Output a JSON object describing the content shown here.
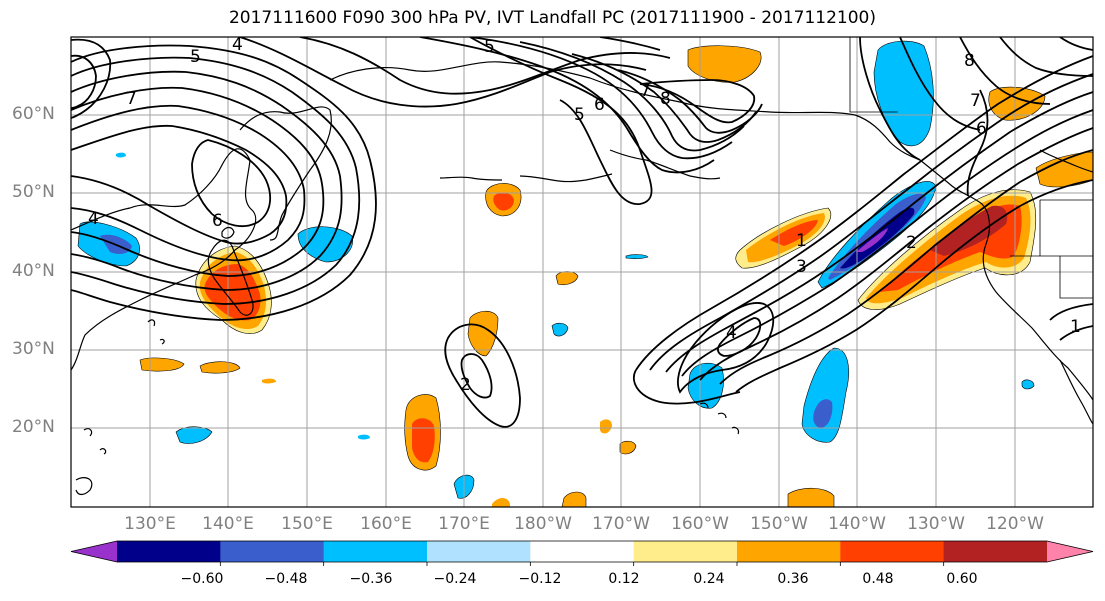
{
  "title": "2017111600 F090 300 hPa PV, IVT Landfall PC (2017111900 - 2017112100)",
  "map": {
    "lat_labels": [
      {
        "label": "60°N",
        "lat": 60
      },
      {
        "label": "50°N",
        "lat": 50
      },
      {
        "label": "40°N",
        "lat": 40
      },
      {
        "label": "30°N",
        "lat": 30
      },
      {
        "label": "20°N",
        "lat": 20
      }
    ],
    "lon_labels": [
      {
        "label": "130°E",
        "lon": 130
      },
      {
        "label": "140°E",
        "lon": 140
      },
      {
        "label": "150°E",
        "lon": 150
      },
      {
        "label": "160°E",
        "lon": 160
      },
      {
        "label": "170°E",
        "lon": 170
      },
      {
        "label": "180°W",
        "lon": 180
      },
      {
        "label": "170°W",
        "lon": 190
      },
      {
        "label": "160°W",
        "lon": 200
      },
      {
        "label": "150°W",
        "lon": 210
      },
      {
        "label": "140°W",
        "lon": 220
      },
      {
        "label": "130°W",
        "lon": 230
      },
      {
        "label": "120°W",
        "lon": 240
      }
    ],
    "extent": {
      "lon_min": 120,
      "lon_max": 250,
      "lat_min": 10,
      "lat_max": 70
    },
    "pv_contour_labels": [
      "5",
      "4",
      "5",
      "6",
      "7",
      "4",
      "5",
      "6",
      "7",
      "8",
      "8",
      "7",
      "6",
      "1",
      "2",
      "3",
      "4",
      "1",
      "2"
    ]
  },
  "colorbar": {
    "colors": [
      "#9932cc",
      "#00008b",
      "#3a5fcd",
      "#00bfff",
      "#b0e2ff",
      "#ffffff",
      "#ffec8b",
      "#ffa500",
      "#ff4000",
      "#b22222",
      "#ff82ab"
    ],
    "labels": [
      "−0.60",
      "−0.48",
      "−0.36",
      "−0.24",
      "−0.12",
      "0.12",
      "0.24",
      "0.36",
      "0.48",
      "0.60"
    ]
  }
}
